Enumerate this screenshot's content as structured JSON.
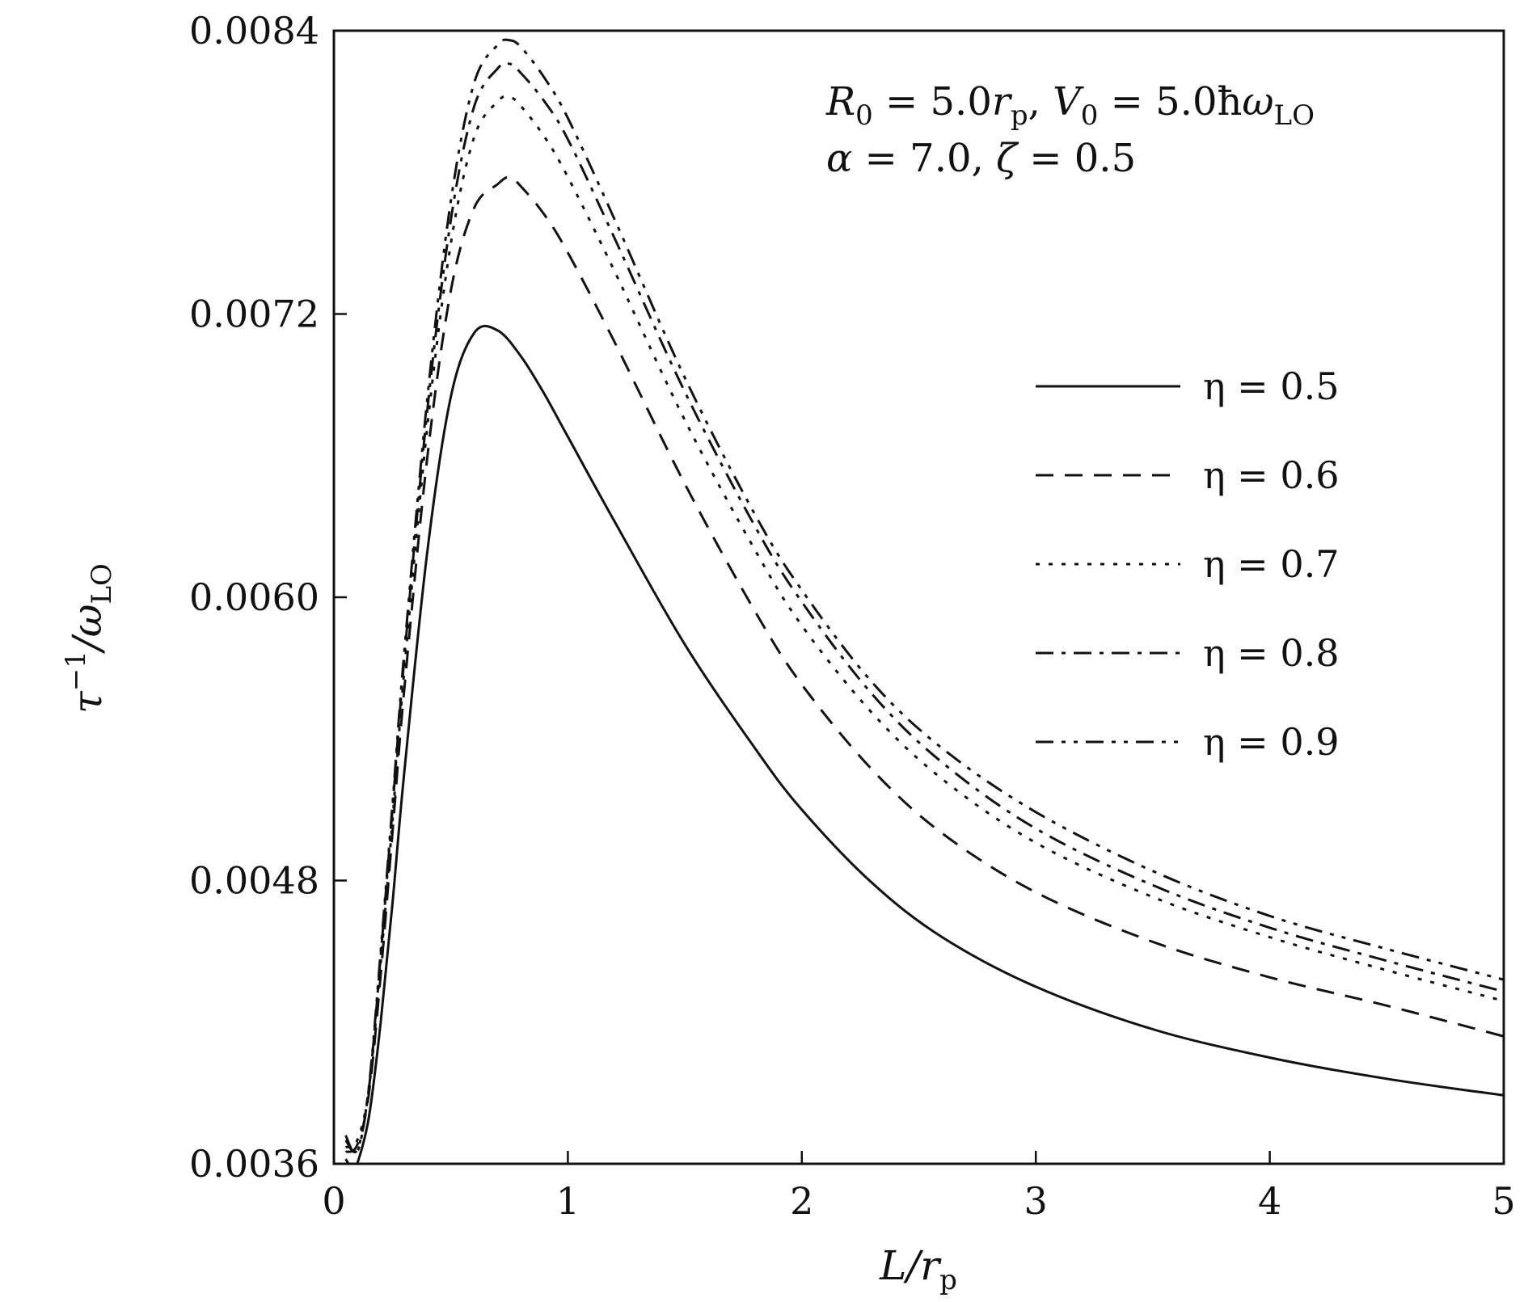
{
  "chart_data": {
    "type": "line",
    "title": "",
    "xlabel": "L/r_p",
    "ylabel": "τ^{-1}/ω_LO",
    "xlim": [
      0,
      5
    ],
    "ylim": [
      0.0036,
      0.0084
    ],
    "x_ticks": [
      0,
      1,
      2,
      3,
      4,
      5
    ],
    "x_tick_labels": [
      "0",
      "1",
      "2",
      "3",
      "4",
      "5"
    ],
    "y_ticks": [
      0.0036,
      0.0048,
      0.006,
      0.0072,
      0.0084
    ],
    "y_tick_labels": [
      "0.0036",
      "0.0048",
      "0.0060",
      "0.0072",
      "0.0084"
    ],
    "grid": false,
    "legend_position": "right",
    "annotations": [
      "R₀ = 5.0r_p, V₀ = 5.0ħω_LO",
      "α = 7.0, ζ = 0.5"
    ],
    "series": [
      {
        "name": "η = 0.5",
        "style": "solid",
        "x": [
          0.05,
          0.08,
          0.1,
          0.15,
          0.2,
          0.25,
          0.3,
          0.4,
          0.5,
          0.6,
          0.7,
          0.8,
          0.9,
          1.0,
          1.2,
          1.5,
          1.8,
          2.0,
          2.3,
          2.6,
          3.0,
          3.5,
          4.0,
          4.5,
          5.0
        ],
        "values": [
          0.00362,
          0.00358,
          0.0036,
          0.0038,
          0.0042,
          0.0047,
          0.00525,
          0.0062,
          0.00685,
          0.00712,
          0.00713,
          0.00702,
          0.00686,
          0.00668,
          0.00632,
          0.0058,
          0.00536,
          0.0051,
          0.00479,
          0.00456,
          0.00435,
          0.00417,
          0.00405,
          0.00396,
          0.00389
        ]
      },
      {
        "name": "η = 0.6",
        "style": "dashed",
        "x": [
          0.05,
          0.1,
          0.15,
          0.2,
          0.25,
          0.3,
          0.4,
          0.5,
          0.6,
          0.7,
          0.75,
          0.8,
          0.9,
          1.0,
          1.2,
          1.5,
          1.8,
          2.0,
          2.3,
          2.6,
          3.0,
          3.5,
          4.0,
          4.5,
          5.0
        ],
        "values": [
          0.00365,
          0.00368,
          0.0039,
          0.0044,
          0.005,
          0.0056,
          0.0066,
          0.0073,
          0.00765,
          0.00775,
          0.00778,
          0.00774,
          0.00762,
          0.00746,
          0.00708,
          0.00648,
          0.00594,
          0.00563,
          0.00527,
          0.005,
          0.00475,
          0.00454,
          0.00439,
          0.00427,
          0.00414
        ]
      },
      {
        "name": "η = 0.7",
        "style": "dotted",
        "x": [
          0.05,
          0.1,
          0.15,
          0.2,
          0.25,
          0.3,
          0.4,
          0.5,
          0.6,
          0.7,
          0.75,
          0.8,
          0.9,
          1.0,
          1.2,
          1.5,
          1.8,
          2.0,
          2.3,
          2.6,
          3.0,
          3.5,
          4.0,
          4.5,
          5.0
        ],
        "values": [
          0.00367,
          0.0037,
          0.00392,
          0.00445,
          0.00505,
          0.00568,
          0.00673,
          0.0075,
          0.00795,
          0.0081,
          0.00812,
          0.00808,
          0.00795,
          0.00778,
          0.00738,
          0.00675,
          0.0062,
          0.00588,
          0.00551,
          0.00523,
          0.00496,
          0.00473,
          0.00456,
          0.00442,
          0.00429
        ]
      },
      {
        "name": "η = 0.8",
        "style": "dashdot",
        "x": [
          0.05,
          0.1,
          0.15,
          0.2,
          0.25,
          0.3,
          0.4,
          0.5,
          0.6,
          0.7,
          0.75,
          0.8,
          0.9,
          1.0,
          1.2,
          1.5,
          1.8,
          2.0,
          2.3,
          2.6,
          3.0,
          3.5,
          4.0,
          4.5,
          5.0
        ],
        "values": [
          0.0037,
          0.00366,
          0.00392,
          0.00448,
          0.0051,
          0.00573,
          0.0068,
          0.0076,
          0.00808,
          0.00824,
          0.00826,
          0.00822,
          0.0081,
          0.00794,
          0.00752,
          0.00687,
          0.0063,
          0.00598,
          0.00559,
          0.0053,
          0.00502,
          0.00478,
          0.0046,
          0.00446,
          0.00433
        ]
      },
      {
        "name": "η = 0.9",
        "style": "dashdotdot",
        "x": [
          0.05,
          0.1,
          0.15,
          0.2,
          0.25,
          0.3,
          0.4,
          0.5,
          0.6,
          0.7,
          0.75,
          0.8,
          0.9,
          1.0,
          1.2,
          1.5,
          1.8,
          2.0,
          2.3,
          2.6,
          3.0,
          3.5,
          4.0,
          4.5,
          5.0
        ],
        "values": [
          0.00372,
          0.00365,
          0.00393,
          0.0045,
          0.00512,
          0.00576,
          0.00685,
          0.00768,
          0.00818,
          0.00834,
          0.00836,
          0.00833,
          0.0082,
          0.00803,
          0.0076,
          0.00693,
          0.00635,
          0.00603,
          0.00564,
          0.00536,
          0.00509,
          0.00484,
          0.00465,
          0.00451,
          0.00438
        ]
      }
    ]
  }
}
